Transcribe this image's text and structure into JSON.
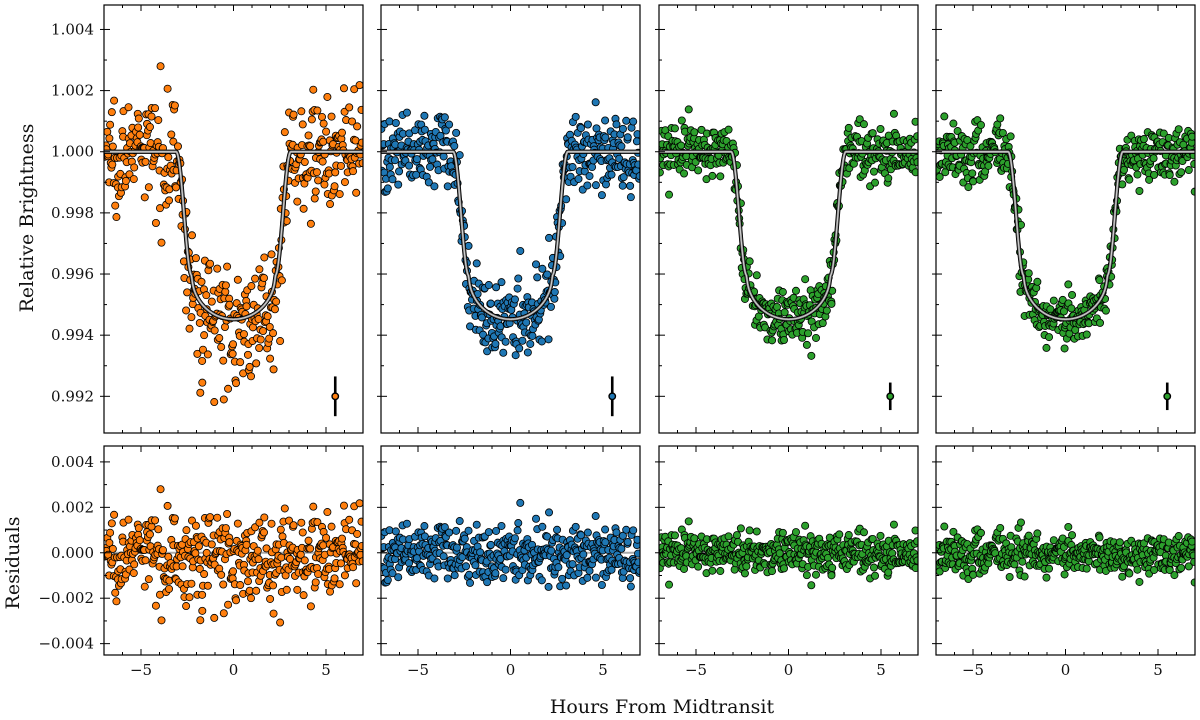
{
  "figure": {
    "xlabel": "Hours From Midtransit",
    "ylabel_top": "Relative Brightness",
    "ylabel_bottom": "Residuals"
  },
  "colors": {
    "orange": "#ff7f0e",
    "blue": "#1f77b4",
    "green": "#2ca02c",
    "model": "#7f7f7f",
    "marker_edge": "#000000"
  },
  "chart_data": [
    {
      "type": "scatter",
      "panel": "light-curve-1",
      "color": "#ff7f0e",
      "model": {
        "baseline": 1.0,
        "depth_min": 0.99452,
        "ingress_start": -3.1,
        "ingress_end": -2.25,
        "curvature": 0.26
      },
      "scatter_sigma": 0.00085,
      "error_bar": {
        "x": 5.5,
        "y": 0.992,
        "yerr": 0.00065
      },
      "xlim": [
        -7,
        7
      ],
      "ylim": [
        0.9908,
        1.0048
      ],
      "xticks": [
        -5,
        0,
        5
      ],
      "yticks": [
        0.992,
        0.994,
        0.996,
        0.998,
        1.0,
        1.002,
        1.004
      ],
      "ytick_labels": [
        "0.992",
        "0.994",
        "0.996",
        "0.998",
        "1.000",
        "1.002",
        "1.004"
      ]
    },
    {
      "type": "scatter",
      "panel": "light-curve-2",
      "color": "#1f77b4",
      "model": {
        "baseline": 1.0,
        "depth_min": 0.99452,
        "ingress_start": -3.1,
        "ingress_end": -2.25,
        "curvature": 0.26
      },
      "scatter_sigma": 0.00065,
      "error_bar": {
        "x": 5.5,
        "y": 0.992,
        "yerr": 0.00065
      },
      "xlim": [
        -7,
        7
      ],
      "ylim": [
        0.9908,
        1.0048
      ],
      "xticks": [
        -5,
        0,
        5
      ]
    },
    {
      "type": "scatter",
      "panel": "light-curve-3",
      "color": "#2ca02c",
      "model": {
        "baseline": 1.0,
        "depth_min": 0.99452,
        "ingress_start": -3.1,
        "ingress_end": -2.25,
        "curvature": 0.26
      },
      "scatter_sigma": 0.00045,
      "error_bar": {
        "x": 5.5,
        "y": 0.992,
        "yerr": 0.00045
      },
      "xlim": [
        -7,
        7
      ],
      "ylim": [
        0.9908,
        1.0048
      ],
      "xticks": [
        -5,
        0,
        5
      ]
    },
    {
      "type": "scatter",
      "panel": "light-curve-4",
      "color": "#2ca02c",
      "model": {
        "baseline": 1.0,
        "depth_min": 0.99452,
        "ingress_start": -3.1,
        "ingress_end": -2.25,
        "curvature": 0.26
      },
      "scatter_sigma": 0.00045,
      "error_bar": {
        "x": 5.5,
        "y": 0.992,
        "yerr": 0.00045
      },
      "xlim": [
        -7,
        7
      ],
      "ylim": [
        0.9908,
        1.0048
      ],
      "xticks": [
        -5,
        0,
        5
      ]
    },
    {
      "type": "scatter",
      "panel": "residuals-1",
      "color": "#ff7f0e",
      "scatter_sigma": 0.00085,
      "xlim": [
        -7,
        7
      ],
      "ylim": [
        -0.0045,
        0.0047
      ],
      "xticks": [
        -5,
        0,
        5
      ],
      "xtick_labels": [
        "−5",
        "0",
        "5"
      ],
      "yticks": [
        -0.004,
        -0.002,
        0.0,
        0.002,
        0.004
      ],
      "ytick_labels": [
        "−0.004",
        "−0.002",
        "0.000",
        "0.002",
        "0.004"
      ]
    },
    {
      "type": "scatter",
      "panel": "residuals-2",
      "color": "#1f77b4",
      "scatter_sigma": 0.00065,
      "xlim": [
        -7,
        7
      ],
      "ylim": [
        -0.0045,
        0.0047
      ],
      "xticks": [
        -5,
        0,
        5
      ],
      "xtick_labels": [
        "−5",
        "0",
        "5"
      ]
    },
    {
      "type": "scatter",
      "panel": "residuals-3",
      "color": "#2ca02c",
      "scatter_sigma": 0.00045,
      "xlim": [
        -7,
        7
      ],
      "ylim": [
        -0.0045,
        0.0047
      ],
      "xticks": [
        -5,
        0,
        5
      ],
      "xtick_labels": [
        "−5",
        "0",
        "5"
      ]
    },
    {
      "type": "scatter",
      "panel": "residuals-4",
      "color": "#2ca02c",
      "scatter_sigma": 0.00045,
      "xlim": [
        -7,
        7
      ],
      "ylim": [
        -0.0045,
        0.0047
      ],
      "xticks": [
        -5,
        0,
        5
      ],
      "xtick_labels": [
        "−5",
        "0",
        "5"
      ]
    }
  ]
}
